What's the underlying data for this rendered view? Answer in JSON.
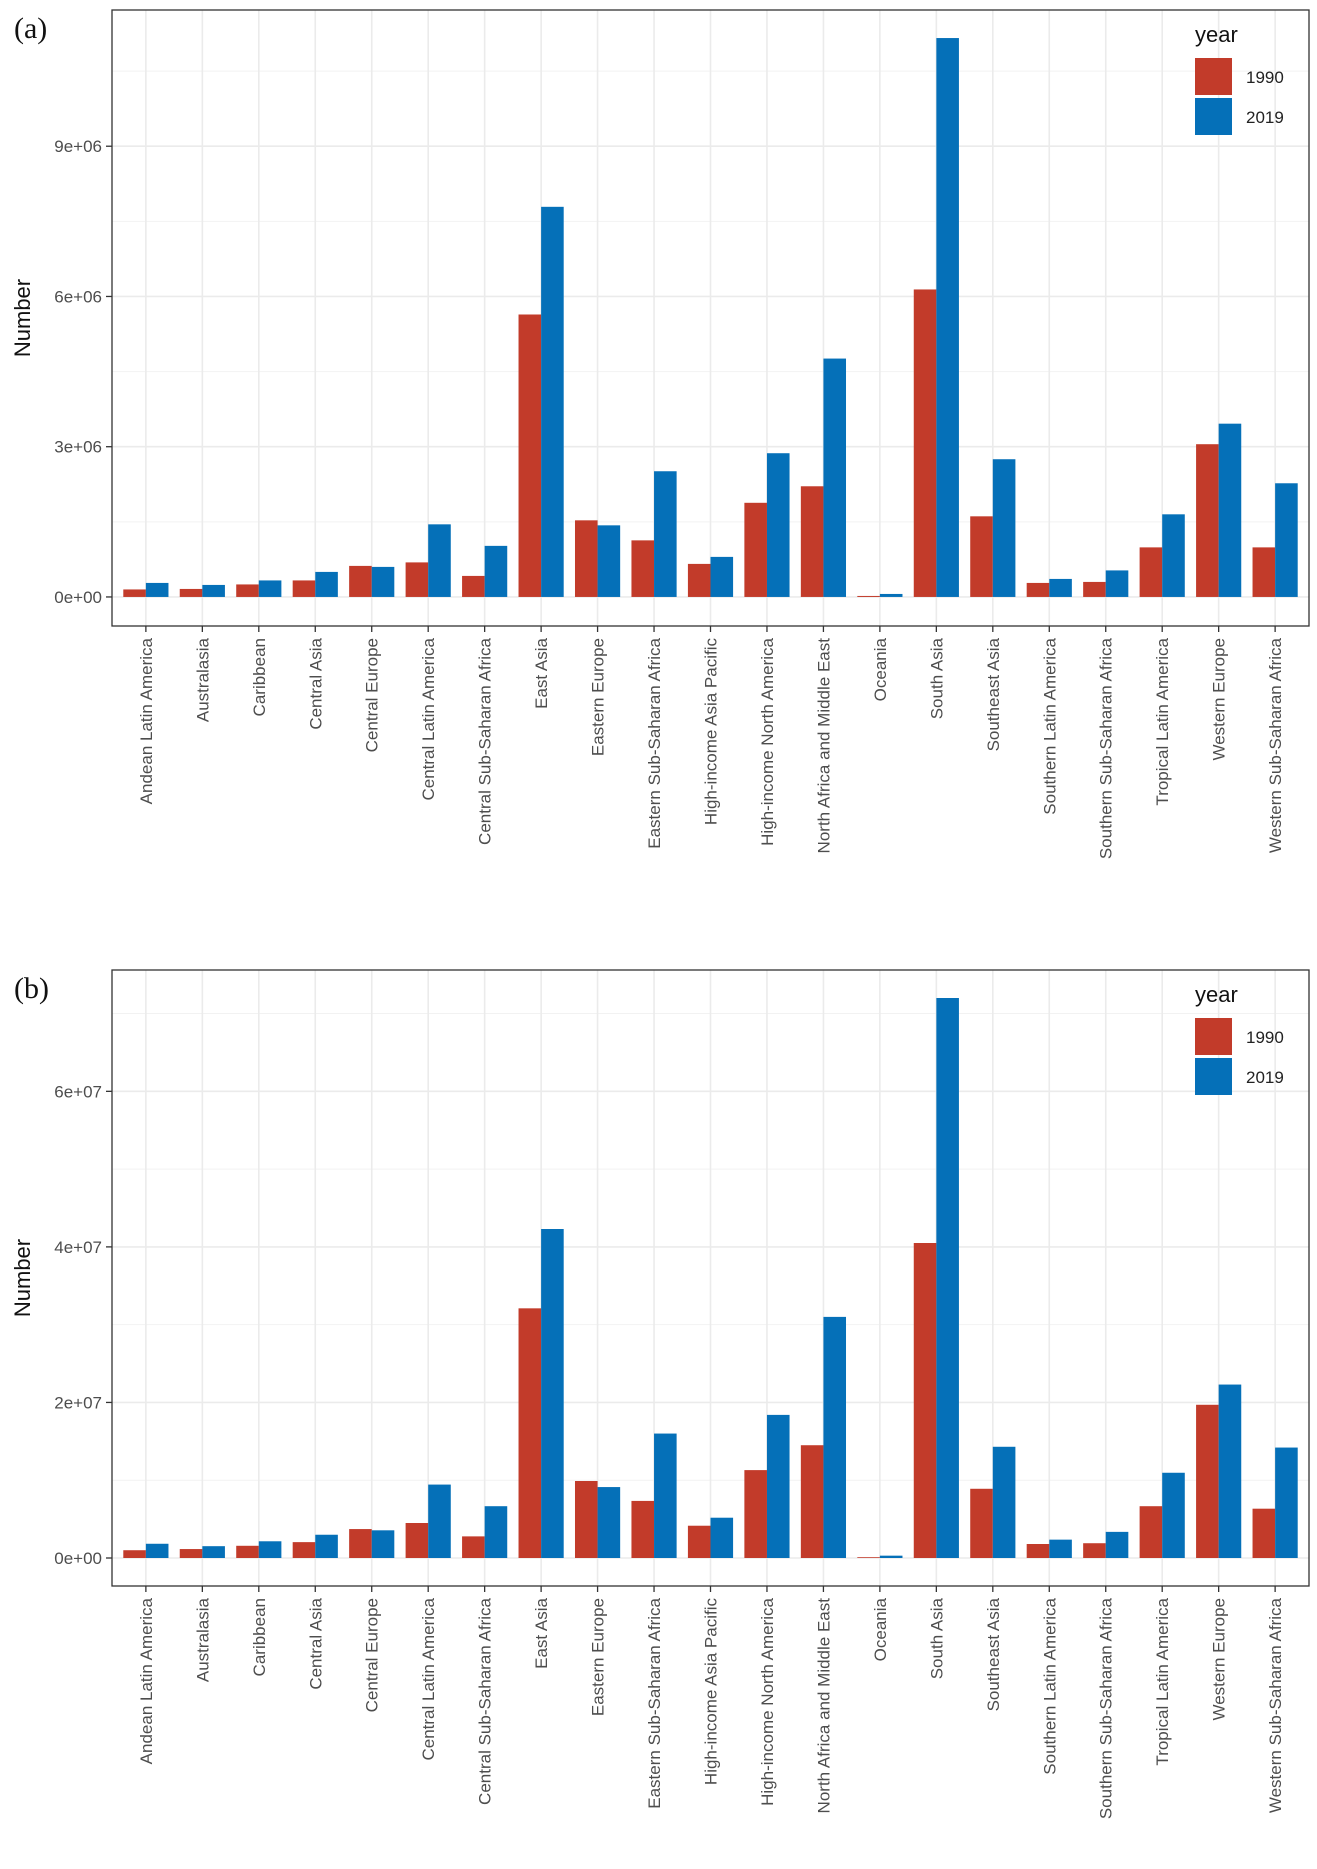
{
  "colors": {
    "1990": "#c23b2a",
    "2019": "#0570b8"
  },
  "chart_data": [
    {
      "panel": "(a)",
      "type": "bar",
      "title": "",
      "xlabel": "",
      "ylabel": "Number",
      "ylim": [
        -580000,
        11720000
      ],
      "yticks": [
        0,
        3000000,
        6000000,
        9000000
      ],
      "ytick_labels": [
        "0e+00",
        "3e+06",
        "6e+06",
        "9e+06"
      ],
      "minor_yticks": [
        1500000,
        4500000,
        7500000,
        10500000
      ],
      "grid": true,
      "legend": {
        "title": "year",
        "position": "top-right",
        "entries": [
          "1990",
          "2019"
        ]
      },
      "categories": [
        "Andean Latin America",
        "Australasia",
        "Caribbean",
        "Central Asia",
        "Central Europe",
        "Central Latin America",
        "Central Sub-Saharan Africa",
        "East Asia",
        "Eastern Europe",
        "Eastern Sub-Saharan Africa",
        "High-income Asia Pacific",
        "High-income North America",
        "North Africa and Middle East",
        "Oceania",
        "South Asia",
        "Southeast Asia",
        "Southern Latin America",
        "Southern Sub-Saharan Africa",
        "Tropical Latin America",
        "Western Europe",
        "Western Sub-Saharan Africa"
      ],
      "series": [
        {
          "name": "1990",
          "values": [
            150000,
            160000,
            250000,
            330000,
            620000,
            690000,
            420000,
            5640000,
            1530000,
            1130000,
            660000,
            1880000,
            2210000,
            20000,
            6140000,
            1610000,
            280000,
            300000,
            990000,
            3050000,
            990000
          ]
        },
        {
          "name": "2019",
          "values": [
            280000,
            240000,
            330000,
            500000,
            600000,
            1450000,
            1020000,
            7790000,
            1430000,
            2510000,
            800000,
            2870000,
            4760000,
            60000,
            11160000,
            2750000,
            360000,
            530000,
            1650000,
            3460000,
            2270000
          ]
        }
      ]
    },
    {
      "panel": "(b)",
      "type": "bar",
      "title": "",
      "xlabel": "",
      "ylabel": "Number",
      "ylim": [
        -3600000,
        75600000
      ],
      "yticks": [
        0,
        20000000,
        40000000,
        60000000
      ],
      "ytick_labels": [
        "0e+00",
        "2e+07",
        "4e+07",
        "6e+07"
      ],
      "minor_yticks": [
        10000000,
        30000000,
        50000000,
        70000000
      ],
      "grid": true,
      "legend": {
        "title": "year",
        "position": "top-right",
        "entries": [
          "1990",
          "2019"
        ]
      },
      "categories": [
        "Andean Latin America",
        "Australasia",
        "Caribbean",
        "Central Asia",
        "Central Europe",
        "Central Latin America",
        "Central Sub-Saharan Africa",
        "East Asia",
        "Eastern Europe",
        "Eastern Sub-Saharan Africa",
        "High-income Asia Pacific",
        "High-income North America",
        "North Africa and Middle East",
        "Oceania",
        "South Asia",
        "Southeast Asia",
        "Southern Latin America",
        "Southern Sub-Saharan Africa",
        "Tropical Latin America",
        "Western Europe",
        "Western Sub-Saharan Africa"
      ],
      "series": [
        {
          "name": "1990",
          "values": [
            1000000,
            1150000,
            1570000,
            2040000,
            3720000,
            4500000,
            2780000,
            32100000,
            9900000,
            7340000,
            4150000,
            11300000,
            14500000,
            100000,
            40500000,
            8900000,
            1800000,
            1900000,
            6660000,
            19700000,
            6340000
          ]
        },
        {
          "name": "2019",
          "values": [
            1830000,
            1520000,
            2150000,
            2990000,
            3560000,
            9440000,
            6660000,
            42300000,
            9120000,
            16000000,
            5180000,
            18400000,
            31000000,
            300000,
            72000000,
            14300000,
            2360000,
            3360000,
            10960000,
            22300000,
            14200000
          ]
        }
      ]
    }
  ]
}
